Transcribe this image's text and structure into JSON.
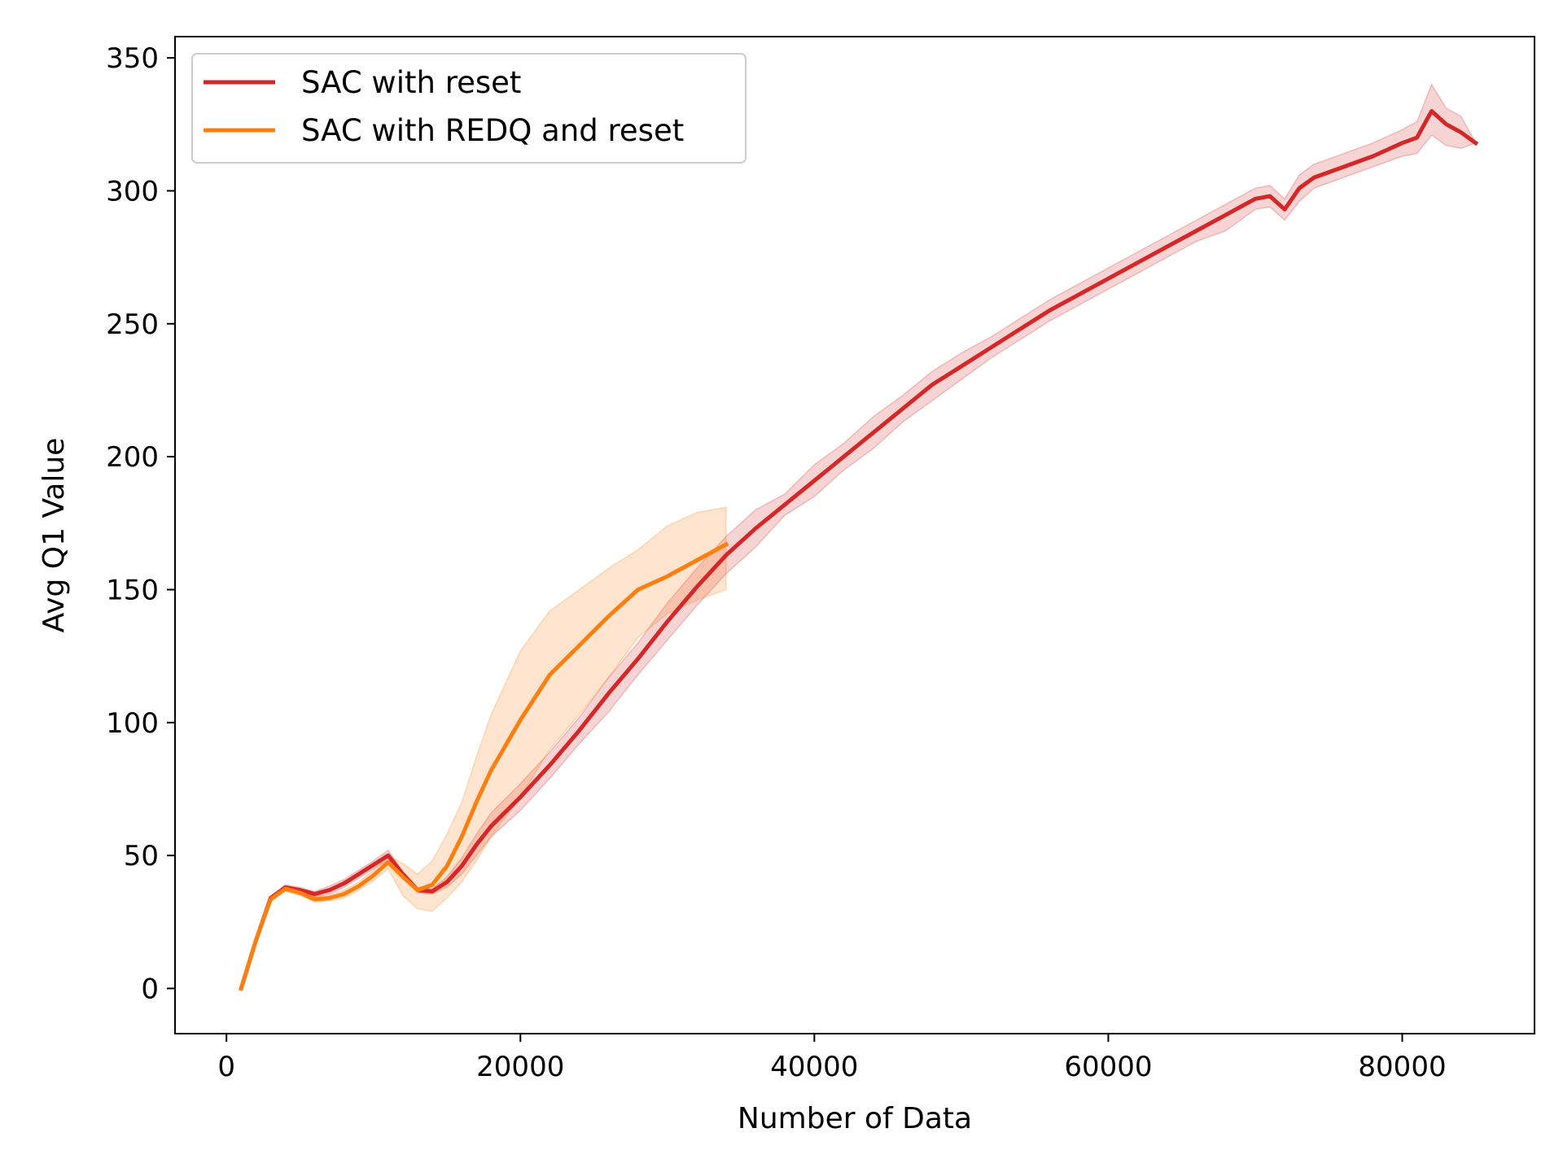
{
  "chart_data": {
    "type": "line",
    "title": "",
    "xlabel": "Number of Data",
    "ylabel": "Avg Q1 Value",
    "xlim": [
      -3500,
      89000
    ],
    "ylim": [
      -17,
      358
    ],
    "xticks": [
      0,
      20000,
      40000,
      60000,
      80000
    ],
    "xtick_labels": [
      "0",
      "20000",
      "40000",
      "60000",
      "80000"
    ],
    "yticks": [
      0,
      50,
      100,
      150,
      200,
      250,
      300,
      350
    ],
    "ytick_labels": [
      "0",
      "50",
      "100",
      "150",
      "200",
      "250",
      "300",
      "350"
    ],
    "grid": false,
    "legend_position": "upper-left",
    "series": [
      {
        "name": "SAC with reset",
        "color": "#d62728",
        "shaded_band": true,
        "x": [
          1000,
          2000,
          3000,
          4000,
          5000,
          6000,
          7000,
          8000,
          9000,
          10000,
          11000,
          12000,
          13000,
          14000,
          15000,
          16000,
          17000,
          18000,
          20000,
          22000,
          24000,
          26000,
          28000,
          30000,
          32000,
          34000,
          36000,
          38000,
          40000,
          42000,
          44000,
          46000,
          48000,
          50000,
          52000,
          54000,
          56000,
          58000,
          60000,
          62000,
          64000,
          66000,
          68000,
          70000,
          71000,
          72000,
          73000,
          74000,
          76000,
          78000,
          80000,
          81000,
          82000,
          83000,
          84000,
          85000
        ],
        "y": [
          0,
          18,
          34,
          38,
          37,
          35.5,
          37,
          39.5,
          43,
          46.5,
          50,
          43,
          37,
          36.5,
          40,
          46,
          54,
          61,
          72,
          84,
          97,
          111,
          124,
          138,
          151,
          163,
          173,
          182,
          191,
          200,
          209,
          218,
          227,
          234,
          241,
          248,
          255,
          261,
          267,
          273,
          279,
          285,
          291,
          297,
          298,
          293,
          301,
          305,
          309,
          313,
          318,
          320,
          330,
          325,
          322,
          318
        ],
        "y_lower": [
          0,
          18,
          34,
          37,
          36,
          34.5,
          35.5,
          38,
          41.5,
          45,
          48,
          42,
          36,
          35.5,
          38,
          43,
          50,
          57,
          67,
          79,
          92,
          104,
          118,
          131,
          144,
          156,
          166,
          178,
          185,
          195,
          203,
          213,
          221,
          229,
          237,
          244,
          251,
          257,
          263,
          269,
          275,
          281,
          285,
          293,
          294,
          289,
          296,
          301,
          305,
          309,
          313,
          314,
          321,
          317,
          316,
          318
        ],
        "y_upper": [
          0,
          18,
          34,
          39,
          38,
          36.5,
          38.5,
          41,
          44.5,
          48,
          52,
          44,
          38,
          37.5,
          42,
          49,
          58,
          66,
          77,
          89,
          102,
          117,
          130,
          145,
          158,
          170,
          180,
          186,
          197,
          205,
          215,
          223,
          232,
          239,
          245,
          252,
          259,
          265,
          271,
          277,
          283,
          289,
          295,
          301,
          302,
          297,
          306,
          310,
          314,
          318,
          323,
          326,
          340,
          331,
          328,
          318
        ]
      },
      {
        "name": "SAC with REDQ and reset",
        "color": "#ff7f0e",
        "shaded_band": true,
        "x": [
          1000,
          2000,
          3000,
          4000,
          5000,
          6000,
          7000,
          8000,
          9000,
          10000,
          11000,
          12000,
          13000,
          14000,
          15000,
          16000,
          17000,
          18000,
          20000,
          22000,
          24000,
          26000,
          28000,
          30000,
          32000,
          34000
        ],
        "y": [
          0,
          18,
          33.5,
          37.5,
          36,
          33.5,
          34,
          35.5,
          38.5,
          42.5,
          47.5,
          42,
          37,
          39,
          46,
          57,
          70,
          82,
          101,
          118,
          129,
          140,
          150,
          155,
          161,
          167
        ],
        "y_lower": [
          0,
          18,
          32.5,
          36.5,
          35,
          32.5,
          33,
          34,
          37,
          40.5,
          45,
          35,
          30,
          29,
          34,
          40,
          48,
          57,
          72,
          90,
          103,
          117,
          132,
          141,
          146,
          150
        ],
        "y_upper": [
          0,
          18,
          34.5,
          38.5,
          37,
          34.5,
          35,
          37,
          40,
          44.5,
          50,
          47,
          43,
          48,
          58,
          70,
          87,
          103,
          127,
          142,
          150,
          158,
          165,
          174,
          179,
          181
        ]
      }
    ]
  }
}
